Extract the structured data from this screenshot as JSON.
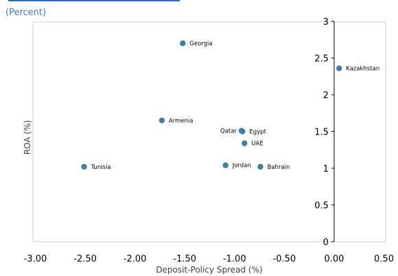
{
  "chart_data": {
    "type": "scatter",
    "title": "",
    "subtitle": "(Percent)",
    "xlabel": "Deposit-Policy Spread (%)",
    "ylabel": "ROA (%)",
    "xlim": [
      -3.0,
      0.5
    ],
    "ylim": [
      0,
      3
    ],
    "x_ticks": [
      "-3.00",
      "-2.50",
      "-2.00",
      "-1.50",
      "-1.00",
      "-0.50",
      "0.00",
      "0.50"
    ],
    "y_ticks": [
      "0",
      "0.5",
      "1",
      "1.5",
      "2",
      "2.5",
      "3"
    ],
    "grid": false,
    "point_color": "#3e7fa6",
    "points": [
      {
        "label": "Georgia",
        "x": -1.52,
        "y": 2.7
      },
      {
        "label": "Kazakhstan",
        "x": 0.05,
        "y": 2.36
      },
      {
        "label": "Armenia",
        "x": -1.73,
        "y": 1.65
      },
      {
        "label": "Qatar",
        "x": -0.93,
        "y": 1.51
      },
      {
        "label": "Egypt",
        "x": -0.92,
        "y": 1.5
      },
      {
        "label": "UAE",
        "x": -0.9,
        "y": 1.34
      },
      {
        "label": "Tunisia",
        "x": -2.51,
        "y": 1.02
      },
      {
        "label": "Jordan",
        "x": -1.09,
        "y": 1.04
      },
      {
        "label": "Bahrain",
        "x": -0.74,
        "y": 1.02
      }
    ]
  }
}
